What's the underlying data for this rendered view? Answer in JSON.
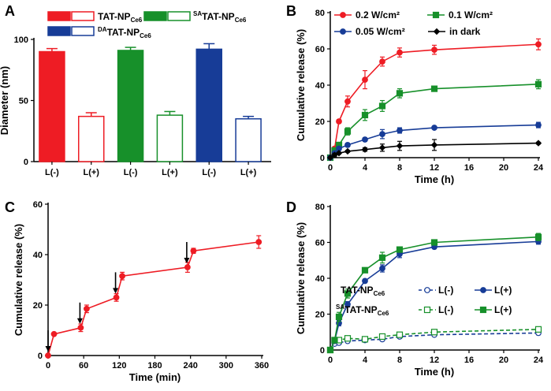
{
  "colors": {
    "red": "#ee1c24",
    "green": "#17902a",
    "blue": "#173c97",
    "black": "#000000"
  },
  "panels": {
    "a": "A",
    "b": "B",
    "c": "C",
    "d": "D"
  },
  "chart_data": [
    {
      "panel": "A",
      "type": "bar",
      "ylabel": "Diameter (nm)",
      "ylim": [
        0,
        100
      ],
      "yticks": [
        "0",
        "50",
        "100"
      ],
      "categories": [
        "L(-)",
        "L(+)",
        "L(-)",
        "L(+)",
        "L(-)",
        "L(+)"
      ],
      "values": [
        90,
        37,
        91,
        38,
        92,
        35
      ],
      "errors": [
        2.5,
        3,
        2.5,
        3,
        4.5,
        2
      ],
      "bar_colors": [
        "red",
        "red",
        "green",
        "green",
        "blue",
        "blue"
      ],
      "bar_filled": [
        true,
        false,
        true,
        false,
        true,
        false
      ],
      "legend": {
        "tat": {
          "main": "TAT-NP",
          "sub": "Ce6"
        },
        "sa": {
          "sup": "SA",
          "main": "TAT-NP",
          "sub": "Ce6"
        },
        "da": {
          "sup": "DA",
          "main": "TAT-NP",
          "sub": "Ce6"
        }
      }
    },
    {
      "panel": "B",
      "type": "line",
      "xlabel": "Time (h)",
      "ylabel": "Cumulative release (%)",
      "xlim": [
        0,
        24
      ],
      "ylim": [
        0,
        80
      ],
      "xticks": [
        "0",
        "4",
        "8",
        "12",
        "16",
        "20",
        "24"
      ],
      "yticks": [
        "0",
        "20",
        "40",
        "60",
        "80"
      ],
      "x": [
        0,
        0.5,
        1,
        2,
        4,
        6,
        8,
        12,
        24
      ],
      "series": [
        {
          "name": "0.2 W/cm²",
          "color": "red",
          "marker": "circle",
          "values": [
            0,
            5,
            20,
            31,
            43,
            53,
            58,
            59.5,
            62.5
          ],
          "errors": [
            0,
            1,
            1,
            3,
            5,
            2.5,
            2.5,
            2.5,
            3
          ]
        },
        {
          "name": "0.1 W/cm²",
          "color": "green",
          "marker": "square",
          "values": [
            0,
            4,
            7,
            14.5,
            23.5,
            28.5,
            35.5,
            38,
            40.5
          ],
          "errors": [
            0,
            1,
            1,
            2,
            3,
            3,
            2.5,
            1,
            2.5
          ]
        },
        {
          "name": "0.05 W/cm²",
          "color": "blue",
          "marker": "circle",
          "values": [
            0,
            2.5,
            5,
            7,
            10,
            13,
            15,
            16.5,
            18
          ],
          "errors": [
            0,
            1,
            1,
            1,
            1,
            2.5,
            1.5,
            0.8,
            1.5
          ]
        },
        {
          "name": "in dark",
          "color": "black",
          "marker": "diamond",
          "values": [
            0,
            1.5,
            2.5,
            3.5,
            4.5,
            5.5,
            6.5,
            7,
            8
          ],
          "errors": [
            0,
            1,
            0.5,
            0.5,
            1,
            2,
            2.5,
            3,
            0.5
          ]
        }
      ]
    },
    {
      "panel": "C",
      "type": "line",
      "xlabel": "Time (min)",
      "ylabel": "Cumulative release (%)",
      "xlim": [
        0,
        360
      ],
      "ylim": [
        0,
        60
      ],
      "xticks": [
        "0",
        "60",
        "120",
        "180",
        "240",
        "300",
        "360"
      ],
      "yticks": [
        "0",
        "20",
        "40",
        "60"
      ],
      "series": [
        {
          "name": "release",
          "color": "red",
          "marker": "circle",
          "x": [
            0,
            10,
            55,
            65,
            115,
            125,
            235,
            245,
            355
          ],
          "values": [
            0,
            8.5,
            11,
            18.5,
            23,
            31.5,
            35,
            41.5,
            45
          ],
          "errors": [
            0,
            0.5,
            1.5,
            1.5,
            1.5,
            1.5,
            2,
            1,
            2.5
          ]
        }
      ],
      "arrows_at": [
        0,
        55,
        115,
        235
      ]
    },
    {
      "panel": "D",
      "type": "line",
      "xlabel": "Time (h)",
      "ylabel": "Cumulative release (%)",
      "xlim": [
        0,
        24
      ],
      "ylim": [
        0,
        80
      ],
      "xticks": [
        "0",
        "4",
        "8",
        "12",
        "16",
        "20",
        "24"
      ],
      "yticks": [
        "0",
        "20",
        "40",
        "60",
        "80"
      ],
      "x": [
        0,
        0.5,
        1,
        2,
        4,
        6,
        8,
        12,
        24
      ],
      "series": [
        {
          "name": "TAT-NPCe6 L(-)",
          "color": "blue",
          "marker": "circle",
          "filled": false,
          "dashed": true,
          "values": [
            0,
            3.5,
            4,
            5,
            5.5,
            6,
            7.5,
            8.5,
            9.5
          ],
          "errors": [
            0,
            0.5,
            0.5,
            0.5,
            0.5,
            0.5,
            0.5,
            0.5,
            1
          ]
        },
        {
          "name": "TAT-NPCe6 L(+)",
          "color": "blue",
          "marker": "circle",
          "filled": true,
          "dashed": false,
          "values": [
            0,
            5,
            15,
            25.5,
            38.5,
            45.5,
            53.5,
            57.5,
            60.5
          ],
          "errors": [
            0,
            1,
            1.5,
            1.5,
            1,
            2,
            2,
            1,
            1.5
          ]
        },
        {
          "name": "SATAT-NPCe6 L(-)",
          "color": "green",
          "marker": "square",
          "filled": false,
          "dashed": true,
          "values": [
            0,
            5.5,
            5.5,
            6.5,
            6,
            7.5,
            8.5,
            10,
            11.5
          ],
          "errors": [
            0,
            0.5,
            0.5,
            0.5,
            0.5,
            0.5,
            0.5,
            0.5,
            1
          ]
        },
        {
          "name": "SATAT-NPCe6 L(+)",
          "color": "green",
          "marker": "square",
          "filled": true,
          "dashed": false,
          "values": [
            0,
            5.5,
            18.5,
            31.5,
            44.5,
            51.5,
            56,
            60,
            63
          ],
          "errors": [
            0,
            1,
            2.5,
            2.5,
            1,
            3,
            1,
            1.5,
            2
          ]
        }
      ],
      "legend": {
        "row1": {
          "main": "TAT-NP",
          "sub": "Ce6"
        },
        "row2": {
          "sup": "SA",
          "main": "TAT-NP",
          "sub": "Ce6"
        },
        "off": "L(-)",
        "on": "L(+)"
      }
    }
  ]
}
